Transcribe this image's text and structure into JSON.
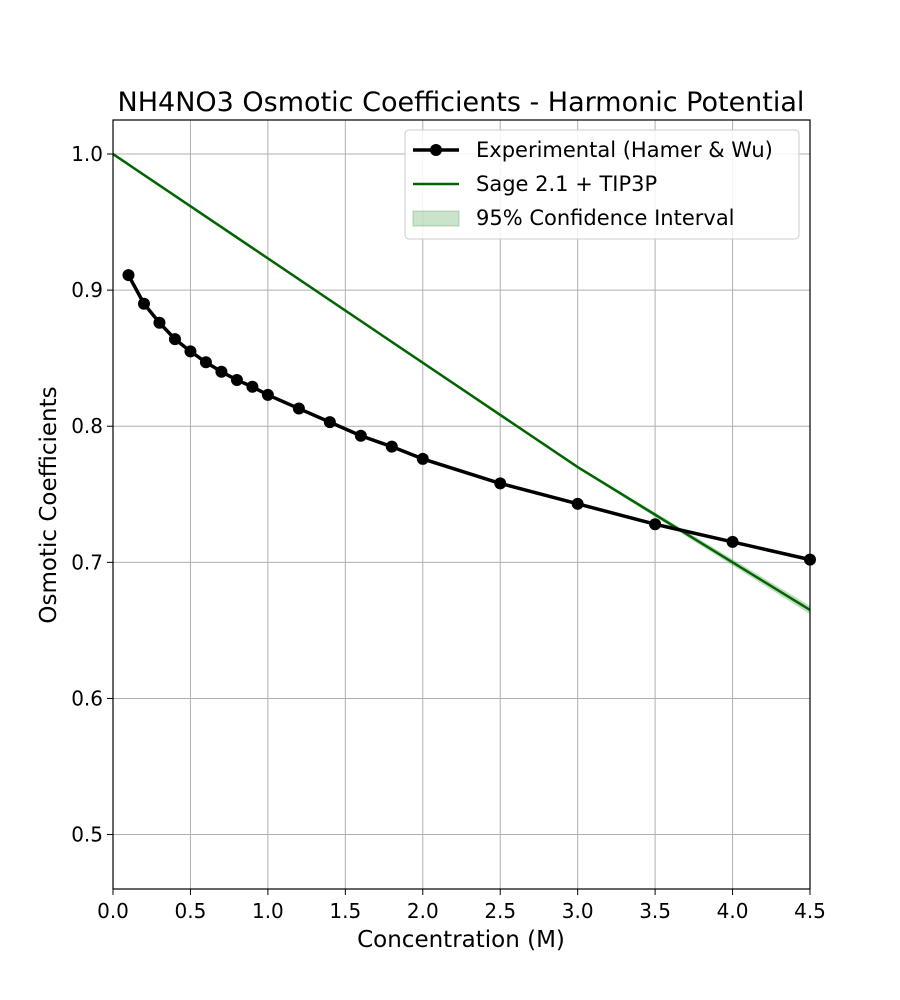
{
  "chart_data": {
    "type": "line",
    "title": "NH4NO3 Osmotic Coefficients - Harmonic Potential",
    "xlabel": "Concentration (M)",
    "ylabel": "Osmotic Coefficients",
    "xlim": [
      0.0,
      4.5
    ],
    "ylim": [
      0.46,
      1.025
    ],
    "xticks": [
      "0.0",
      "0.5",
      "1.0",
      "1.5",
      "2.0",
      "2.5",
      "3.0",
      "3.5",
      "4.0",
      "4.5"
    ],
    "yticks": [
      "0.5",
      "0.6",
      "0.7",
      "0.8",
      "0.9",
      "1.0"
    ],
    "grid": true,
    "legend_position": "top-right",
    "series": [
      {
        "name": "Experimental (Hamer & Wu)",
        "style": "line-markers",
        "color": "#000000",
        "x": [
          0.1,
          0.2,
          0.3,
          0.4,
          0.5,
          0.6,
          0.7,
          0.8,
          0.9,
          1.0,
          1.2,
          1.4,
          1.6,
          1.8,
          2.0,
          2.5,
          3.0,
          3.5,
          4.0,
          4.5
        ],
        "y": [
          0.911,
          0.89,
          0.876,
          0.864,
          0.855,
          0.847,
          0.84,
          0.834,
          0.829,
          0.823,
          0.813,
          0.803,
          0.793,
          0.785,
          0.776,
          0.758,
          0.743,
          0.728,
          0.715,
          0.702
        ]
      },
      {
        "name": "Sage 2.1 + TIP3P",
        "style": "line",
        "color": "#006400",
        "x": [
          0.0,
          3.0,
          4.5
        ],
        "y": [
          1.0,
          0.77,
          0.665
        ]
      }
    ],
    "confidence_band": {
      "name": "95% Confidence Interval",
      "color": "#2e8b2e",
      "x": [
        0.0,
        3.0,
        4.5
      ],
      "lower": [
        1.0,
        0.769,
        0.662
      ],
      "upper": [
        1.0,
        0.771,
        0.668
      ]
    }
  }
}
